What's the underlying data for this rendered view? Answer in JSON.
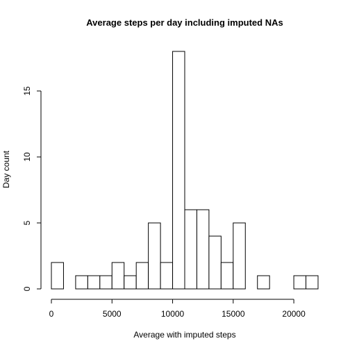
{
  "chart_data": {
    "type": "bar",
    "title": "Average steps per day including imputed NAs",
    "xlabel": "Average with imputed steps",
    "ylabel": "Day count",
    "bin_width": 1000,
    "bins": [
      {
        "start": 0,
        "end": 1000,
        "count": 2
      },
      {
        "start": 1000,
        "end": 2000,
        "count": 0
      },
      {
        "start": 2000,
        "end": 3000,
        "count": 1
      },
      {
        "start": 3000,
        "end": 4000,
        "count": 1
      },
      {
        "start": 4000,
        "end": 5000,
        "count": 1
      },
      {
        "start": 5000,
        "end": 6000,
        "count": 2
      },
      {
        "start": 6000,
        "end": 7000,
        "count": 1
      },
      {
        "start": 7000,
        "end": 8000,
        "count": 2
      },
      {
        "start": 8000,
        "end": 9000,
        "count": 5
      },
      {
        "start": 9000,
        "end": 10000,
        "count": 2
      },
      {
        "start": 10000,
        "end": 11000,
        "count": 18
      },
      {
        "start": 11000,
        "end": 12000,
        "count": 6
      },
      {
        "start": 12000,
        "end": 13000,
        "count": 6
      },
      {
        "start": 13000,
        "end": 14000,
        "count": 4
      },
      {
        "start": 14000,
        "end": 15000,
        "count": 2
      },
      {
        "start": 15000,
        "end": 16000,
        "count": 5
      },
      {
        "start": 16000,
        "end": 17000,
        "count": 0
      },
      {
        "start": 17000,
        "end": 18000,
        "count": 1
      },
      {
        "start": 18000,
        "end": 19000,
        "count": 0
      },
      {
        "start": 19000,
        "end": 20000,
        "count": 0
      },
      {
        "start": 20000,
        "end": 21000,
        "count": 1
      },
      {
        "start": 21000,
        "end": 22000,
        "count": 1
      }
    ],
    "xlim": [
      0,
      22000
    ],
    "ylim": [
      0,
      18
    ],
    "x_ticks": [
      0,
      5000,
      10000,
      15000,
      20000
    ],
    "x_tick_labels": [
      "0",
      "5000",
      "10000",
      "15000",
      "20000"
    ],
    "y_ticks": [
      0,
      5,
      10,
      15
    ],
    "y_tick_labels": [
      "0",
      "5",
      "10",
      "15"
    ],
    "grid": false,
    "legend": "none"
  }
}
